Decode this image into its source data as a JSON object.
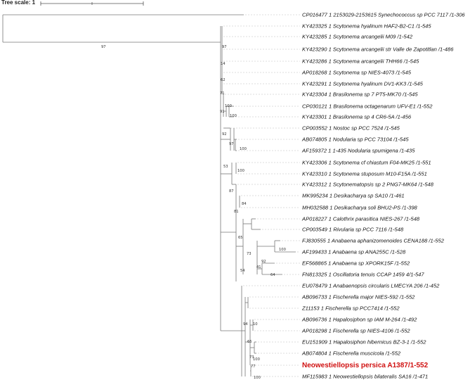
{
  "scale": {
    "label": "Tree scale: 1"
  },
  "colors": {
    "branch": "#777777",
    "leader": "#bbbbbb",
    "label": "#111111",
    "highlight": "#d01010"
  },
  "leaves": [
    "CP016477 1 2153029-2153615 Synechococcus sp PCC 7117 /1-306",
    "KY423325 1 Scytonema hyalinum HAF2-B2-C1 /1-545",
    "KY423285 1 Scytonema arcangelii M09 /1-542",
    "KY423290 1 Scytonema arcangelii str Valle de Zapotitlan /1-486",
    "KY423286 1 Scytonema arcangelii THH66 /1-545",
    "AP018268 1 Scytonema sp NIES-4073 /1-545",
    "KY423291 1 Scytonema hyalinum DV1-KK3 /1-545",
    "KY423304 1 Brasilonema sp 7 PT5-MK70 /1-545",
    "CP030121 1 Brasilonema octagenarum UFV-E1 /1-552",
    "KY423301 1 Brasilonema sp 4 CR6-5A /1-456",
    "CP003552 1 Nostoc sp PCC 7524 /1-545",
    "AB074805 1 Nodularia sp PCC 73104 /1-545",
    "AF159372 1 1-435 Nodularia spumigena /1-435",
    "KY423306 1 Scytonema cf chiastum F04-MK25 /1-551",
    "KY423310 1 Scytonema stuposum M10-F15A /1-551",
    "KY423312 1 Scytonematopsis sp 2 PNG7-MK64 /1-548",
    "MK995234 1 Desikacharya sp SA10 /1-461",
    "MH032588 1 Desikacharya soli BHU2-PS /1-398",
    "AP018227 1 Calothrix parasitica NIES-267 /1-548",
    "CP003549 1 Rivularia sp PCC 7116 /1-548",
    "FJ830555 1 Anabaena aphanizomenoides CENA188 /1-552",
    "AF199433 1 Anabaena sp ANA255C /1-528",
    "EF568865 1 Anabaena sp XPORK15F /1-552",
    "FN813325 1 Oscillatoria tenuis CCAP 1459 4/1-547",
    "EU078479 1 Anabaenopsis circularis LMECYA 206 /1-452",
    "AB096733 1 Fischerella major NIES-592 /1-552",
    "Z11153 1 Fischerella sp PCC7414 /1-552",
    "AB096736 1 Hapalosiphon sp IAM M-264 /1-492",
    "AP018298 1 Fischerella sp NIES-4106 /1-552",
    "EU151909 1 Hapalosiphon hibernicus BZ-3-1 /1-552",
    "AB074804 1 Fischerella muscicola /1-552",
    "Neowestiellopsis persica A1387/1-552",
    "MF115983 1 Neowestiellopsis bilateralis SA16 /1-471"
  ],
  "highlighted_leaf": "Neowestiellopsis persica A1387/1-552",
  "bootstrap": [
    "97",
    "97",
    "14",
    "62",
    "71",
    "91",
    "100",
    "100",
    "92",
    "97",
    "100",
    "53",
    "100",
    "87",
    "81",
    "84",
    "65",
    "73",
    "41",
    "100",
    "92",
    "64",
    "54",
    "94",
    "65",
    "10",
    "73",
    "100",
    "77",
    "100"
  ]
}
